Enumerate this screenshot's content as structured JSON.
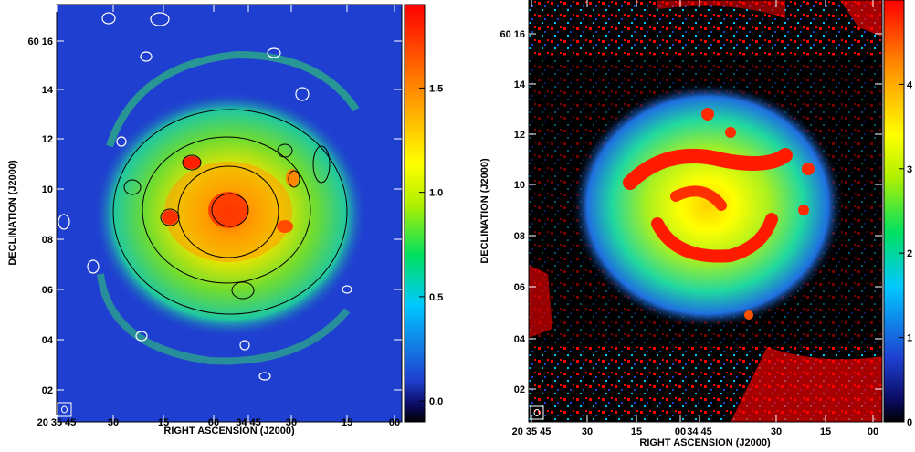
{
  "panels": [
    {
      "id": "left",
      "ra_ticks": [
        "20 35 45",
        "30",
        "15",
        "00",
        "34 45",
        "30",
        "15",
        "00"
      ],
      "dec_ticks": [
        "60 16",
        "14",
        "12",
        "10",
        "08",
        "06",
        "04",
        "02"
      ],
      "xlabel": "RIGHT ASCENSION (J2000)",
      "ylabel": "DECLINATION (J2000)",
      "colorbar_ticks": [
        "1.5",
        "1.0",
        "0.5",
        "0.0"
      ],
      "colorbar_range": [
        -0.1,
        1.9
      ],
      "contours": "black and white contours overlaid",
      "colors": {
        "background": "#1f3fd0"
      }
    },
    {
      "id": "right",
      "ra_ticks": [
        "20 35 45",
        "30",
        "15",
        "00",
        "34 45",
        "30",
        "15",
        "00"
      ],
      "dec_ticks": [
        "60 16",
        "14",
        "12",
        "10",
        "08",
        "06",
        "04",
        "02"
      ],
      "xlabel": "RIGHT ASCENSION (J2000)",
      "ylabel": "DECLINATION (J2000)",
      "colorbar_ticks": [
        "4",
        "3",
        "2",
        "1",
        "0"
      ],
      "colorbar_range": [
        0,
        5
      ],
      "colors": {
        "background": "#000000"
      }
    }
  ]
}
